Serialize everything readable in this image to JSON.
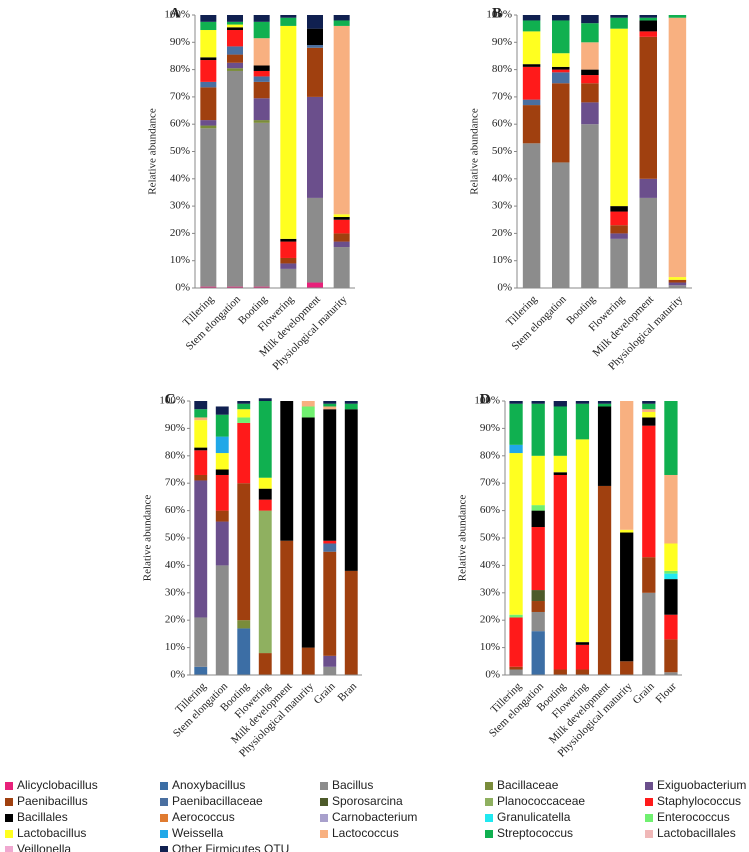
{
  "chart_data": [
    {
      "type": "stacked-bar",
      "title": "A",
      "y_label": "Relative abundance",
      "categories": [
        "Tillering",
        "Stem elongation",
        "Booting",
        "Flowering",
        "Milk development",
        "Physiological maturity"
      ],
      "ylim": [
        0,
        100
      ],
      "yticks": [
        {
          "value": 0,
          "label": "0%"
        },
        {
          "value": 10,
          "label": "10%"
        },
        {
          "value": 20,
          "label": "20%"
        },
        {
          "value": 30,
          "label": "30%"
        },
        {
          "value": 40,
          "label": "40%"
        },
        {
          "value": 50,
          "label": "50%"
        },
        {
          "value": 60,
          "label": "60%"
        },
        {
          "value": 70,
          "label": "70%"
        },
        {
          "value": 80,
          "label": "80%"
        },
        {
          "value": 90,
          "label": "90%"
        },
        {
          "value": 100,
          "label": "100%"
        }
      ],
      "series": [
        {
          "name": "Alicyclobacillus",
          "color": "#e8217a",
          "values": [
            0.5,
            0.5,
            0.5,
            0,
            2,
            0
          ]
        },
        {
          "name": "Bacillus",
          "color": "#8c8c8c",
          "values": [
            58,
            79,
            60,
            7,
            31,
            15
          ]
        },
        {
          "name": "Bacillaceae",
          "color": "#7a8c3a",
          "values": [
            1,
            1,
            1,
            0,
            0,
            0
          ]
        },
        {
          "name": "Exiguobacterium",
          "color": "#6b4f8c",
          "values": [
            2,
            2,
            8,
            2,
            37,
            2
          ]
        },
        {
          "name": "Paenibacillus",
          "color": "#a0400f",
          "values": [
            12,
            3,
            6,
            2,
            18,
            3
          ]
        },
        {
          "name": "Paenibacillaceae",
          "color": "#4a6fa0",
          "values": [
            2,
            3,
            2,
            0,
            1,
            0
          ]
        },
        {
          "name": "Staphylococcus",
          "color": "#ff1a1a",
          "values": [
            8,
            6,
            2,
            6,
            0,
            5
          ]
        },
        {
          "name": "Bacillales",
          "color": "#000000",
          "values": [
            1,
            1,
            2,
            1,
            6,
            1
          ]
        },
        {
          "name": "Lactobacillus",
          "color": "#ffff20",
          "values": [
            10,
            1,
            0,
            78,
            0,
            1
          ]
        },
        {
          "name": "Lactococcus",
          "color": "#f8b080",
          "values": [
            0,
            0,
            10,
            0,
            0,
            69
          ]
        },
        {
          "name": "Streptococcus",
          "color": "#10b050",
          "values": [
            3,
            1,
            6,
            3,
            0,
            2
          ]
        },
        {
          "name": "Other Firmicutes OTU",
          "color": "#102050",
          "values": [
            2.5,
            2.5,
            2.5,
            1,
            5,
            2
          ]
        }
      ]
    },
    {
      "type": "stacked-bar",
      "title": "B",
      "y_label": "Relative abundance",
      "categories": [
        "Tillering",
        "Stem elongation",
        "Booting",
        "Flowering",
        "Milk development",
        "Physiological maturity"
      ],
      "ylim": [
        0,
        100
      ],
      "yticks": [
        {
          "value": 0,
          "label": "0%"
        },
        {
          "value": 10,
          "label": "10%"
        },
        {
          "value": 20,
          "label": "20%"
        },
        {
          "value": 30,
          "label": "30%"
        },
        {
          "value": 40,
          "label": "40%"
        },
        {
          "value": 50,
          "label": "50%"
        },
        {
          "value": 60,
          "label": "60%"
        },
        {
          "value": 70,
          "label": "70%"
        },
        {
          "value": 80,
          "label": "80%"
        },
        {
          "value": 90,
          "label": "90%"
        },
        {
          "value": 100,
          "label": "100%"
        }
      ],
      "series": [
        {
          "name": "Bacillus",
          "color": "#8c8c8c",
          "values": [
            53,
            46,
            60,
            18,
            33,
            1
          ]
        },
        {
          "name": "Exiguobacterium",
          "color": "#6b4f8c",
          "values": [
            0,
            0,
            8,
            2,
            7,
            1
          ]
        },
        {
          "name": "Paenibacillus",
          "color": "#a0400f",
          "values": [
            14,
            29,
            7,
            3,
            52,
            1
          ]
        },
        {
          "name": "Paenibacillaceae",
          "color": "#4a6fa0",
          "values": [
            2,
            4,
            0,
            0,
            0,
            0
          ]
        },
        {
          "name": "Staphylococcus",
          "color": "#ff1a1a",
          "values": [
            12,
            1,
            3,
            5,
            2,
            0
          ]
        },
        {
          "name": "Bacillales",
          "color": "#000000",
          "values": [
            1,
            1,
            2,
            2,
            4,
            0
          ]
        },
        {
          "name": "Lactobacillus",
          "color": "#ffff20",
          "values": [
            12,
            5,
            0,
            65,
            0,
            1
          ]
        },
        {
          "name": "Lactococcus",
          "color": "#f8b080",
          "values": [
            0,
            0,
            10,
            0,
            0,
            95
          ]
        },
        {
          "name": "Streptococcus",
          "color": "#10b050",
          "values": [
            4,
            12,
            7,
            4,
            1,
            1
          ]
        },
        {
          "name": "Other Firmicutes OTU",
          "color": "#102050",
          "values": [
            2,
            2,
            3,
            1,
            1,
            0
          ]
        }
      ]
    },
    {
      "type": "stacked-bar",
      "title": "C",
      "y_label": "Relative abundance",
      "categories": [
        "Tillering",
        "Stem elongation",
        "Booting",
        "Flowering",
        "Milk development",
        "Physiological maturity",
        "Grain",
        "Bran"
      ],
      "ylim": [
        0,
        100
      ],
      "yticks": [
        {
          "value": 0,
          "label": "0%"
        },
        {
          "value": 10,
          "label": "10%"
        },
        {
          "value": 20,
          "label": "20%"
        },
        {
          "value": 30,
          "label": "30%"
        },
        {
          "value": 40,
          "label": "40%"
        },
        {
          "value": 50,
          "label": "50%"
        },
        {
          "value": 60,
          "label": "60%"
        },
        {
          "value": 70,
          "label": "70%"
        },
        {
          "value": 80,
          "label": "80%"
        },
        {
          "value": 90,
          "label": "90%"
        },
        {
          "value": 100,
          "label": "100%"
        }
      ],
      "series": [
        {
          "name": "Anoxybacillus",
          "color": "#3c6ea5",
          "values": [
            3,
            0,
            17,
            0,
            0,
            0,
            0,
            0
          ]
        },
        {
          "name": "Bacillus",
          "color": "#8c8c8c",
          "values": [
            18,
            40,
            0,
            0,
            0,
            0,
            3,
            0
          ]
        },
        {
          "name": "Bacillaceae",
          "color": "#7a8c3a",
          "values": [
            0,
            0,
            3,
            0,
            0,
            0,
            0,
            0
          ]
        },
        {
          "name": "Exiguobacterium",
          "color": "#6b4f8c",
          "values": [
            50,
            16,
            0,
            0,
            0,
            0,
            4,
            0
          ]
        },
        {
          "name": "Paenibacillus",
          "color": "#a0400f",
          "values": [
            2,
            4,
            50,
            8,
            49,
            10,
            38,
            38
          ]
        },
        {
          "name": "Paenibacillaceae",
          "color": "#4a6fa0",
          "values": [
            0,
            0,
            0,
            0,
            0,
            0,
            3,
            0
          ]
        },
        {
          "name": "Planococcaceae",
          "color": "#8fb060",
          "values": [
            0,
            0,
            0,
            52,
            0,
            0,
            0,
            0
          ]
        },
        {
          "name": "Staphylococcus",
          "color": "#ff1a1a",
          "values": [
            9,
            13,
            22,
            4,
            0,
            0,
            1,
            0
          ]
        },
        {
          "name": "Bacillales",
          "color": "#000000",
          "values": [
            1,
            2,
            0,
            4,
            51,
            84,
            48,
            59
          ]
        },
        {
          "name": "Enterococcus",
          "color": "#70f070",
          "values": [
            0,
            0,
            2,
            0,
            0,
            4,
            0,
            0
          ]
        },
        {
          "name": "Lactobacillus",
          "color": "#ffff20",
          "values": [
            10,
            6,
            3,
            4,
            0,
            0,
            0,
            0
          ]
        },
        {
          "name": "Weissella",
          "color": "#20a8e8",
          "values": [
            0,
            6,
            0,
            0,
            0,
            0,
            0,
            0
          ]
        },
        {
          "name": "Lactococcus",
          "color": "#f8b080",
          "values": [
            1,
            0,
            0,
            0,
            0,
            2,
            1,
            0
          ]
        },
        {
          "name": "Streptococcus",
          "color": "#10b050",
          "values": [
            3,
            8,
            2,
            28,
            0,
            0,
            1,
            2
          ]
        },
        {
          "name": "Other Firmicutes OTU",
          "color": "#102050",
          "values": [
            3,
            3,
            1,
            1,
            0,
            0,
            1,
            1
          ]
        }
      ]
    },
    {
      "type": "stacked-bar",
      "title": "D",
      "y_label": "Relative abundance",
      "categories": [
        "Tillering",
        "Stem elongation",
        "Booting",
        "Flowering",
        "Milk development",
        "Physiological maturity",
        "Grain",
        "Flour"
      ],
      "ylim": [
        0,
        100
      ],
      "yticks": [
        {
          "value": 0,
          "label": "0%"
        },
        {
          "value": 10,
          "label": "10%"
        },
        {
          "value": 20,
          "label": "20%"
        },
        {
          "value": 30,
          "label": "30%"
        },
        {
          "value": 40,
          "label": "40%"
        },
        {
          "value": 50,
          "label": "50%"
        },
        {
          "value": 60,
          "label": "60%"
        },
        {
          "value": 70,
          "label": "70%"
        },
        {
          "value": 80,
          "label": "80%"
        },
        {
          "value": 90,
          "label": "90%"
        },
        {
          "value": 100,
          "label": "100%"
        }
      ],
      "series": [
        {
          "name": "Anoxybacillus",
          "color": "#3c6ea5",
          "values": [
            0,
            16,
            0,
            0,
            0,
            0,
            0,
            0
          ]
        },
        {
          "name": "Bacillus",
          "color": "#8c8c8c",
          "values": [
            2,
            7,
            0,
            0,
            0,
            0,
            30,
            1
          ]
        },
        {
          "name": "Paenibacillus",
          "color": "#a0400f",
          "values": [
            1,
            4,
            2,
            2,
            69,
            5,
            13,
            12
          ]
        },
        {
          "name": "Sporosarcina",
          "color": "#4d5a2a",
          "values": [
            0,
            4,
            0,
            0,
            0,
            0,
            0,
            0
          ]
        },
        {
          "name": "Staphylococcus",
          "color": "#ff1a1a",
          "values": [
            18,
            23,
            71,
            9,
            0,
            0,
            48,
            9
          ]
        },
        {
          "name": "Bacillales",
          "color": "#000000",
          "values": [
            0,
            6,
            1,
            1,
            29,
            47,
            3,
            13
          ]
        },
        {
          "name": "Granulicatella",
          "color": "#20e8f0",
          "values": [
            0,
            0,
            0,
            0,
            0,
            0,
            0,
            2
          ]
        },
        {
          "name": "Enterococcus",
          "color": "#70f070",
          "values": [
            1,
            2,
            0,
            0,
            0,
            0,
            0,
            1
          ]
        },
        {
          "name": "Lactobacillus",
          "color": "#ffff20",
          "values": [
            59,
            18,
            6,
            74,
            0,
            1,
            2,
            10
          ]
        },
        {
          "name": "Weissella",
          "color": "#20a8e8",
          "values": [
            3,
            0,
            0,
            0,
            0,
            0,
            0,
            0
          ]
        },
        {
          "name": "Lactococcus",
          "color": "#f8b080",
          "values": [
            0,
            0,
            0,
            0,
            0,
            47,
            1,
            25
          ]
        },
        {
          "name": "Streptococcus",
          "color": "#10b050",
          "values": [
            15,
            19,
            18,
            13,
            1,
            0,
            2,
            27
          ]
        },
        {
          "name": "Other Firmicutes OTU",
          "color": "#102050",
          "values": [
            1,
            1,
            2,
            1,
            1,
            0,
            1,
            0
          ]
        }
      ]
    }
  ],
  "legend": {
    "entries": [
      {
        "name": "Alicyclobacillus",
        "color": "#e8217a"
      },
      {
        "name": "Anoxybacillus",
        "color": "#3c6ea5"
      },
      {
        "name": "Bacillus",
        "color": "#8c8c8c"
      },
      {
        "name": "Bacillaceae",
        "color": "#7a8c3a"
      },
      {
        "name": "Exiguobacterium",
        "color": "#6b4f8c"
      },
      {
        "name": "Paenibacillus",
        "color": "#a0400f"
      },
      {
        "name": "Paenibacillaceae",
        "color": "#4a6fa0"
      },
      {
        "name": "Sporosarcina",
        "color": "#4d5a2a"
      },
      {
        "name": "Planococcaceae",
        "color": "#8fb060"
      },
      {
        "name": "Staphylococcus",
        "color": "#ff1a1a"
      },
      {
        "name": "Bacillales",
        "color": "#000000"
      },
      {
        "name": "Aerococcus",
        "color": "#e07b30"
      },
      {
        "name": "Carnobacterium",
        "color": "#a8a0cc"
      },
      {
        "name": "Granulicatella",
        "color": "#20e8f0"
      },
      {
        "name": "Enterococcus",
        "color": "#70f070"
      },
      {
        "name": "Lactobacillus",
        "color": "#ffff20"
      },
      {
        "name": "Weissella",
        "color": "#20a8e8"
      },
      {
        "name": "Lactococcus",
        "color": "#f8b080"
      },
      {
        "name": "Streptococcus",
        "color": "#10b050"
      },
      {
        "name": "Lactobacillales",
        "color": "#f0b8b8"
      },
      {
        "name": "Veillonella",
        "color": "#f0a8d0"
      },
      {
        "name": "Other Firmicutes OTU",
        "color": "#102050"
      }
    ]
  }
}
